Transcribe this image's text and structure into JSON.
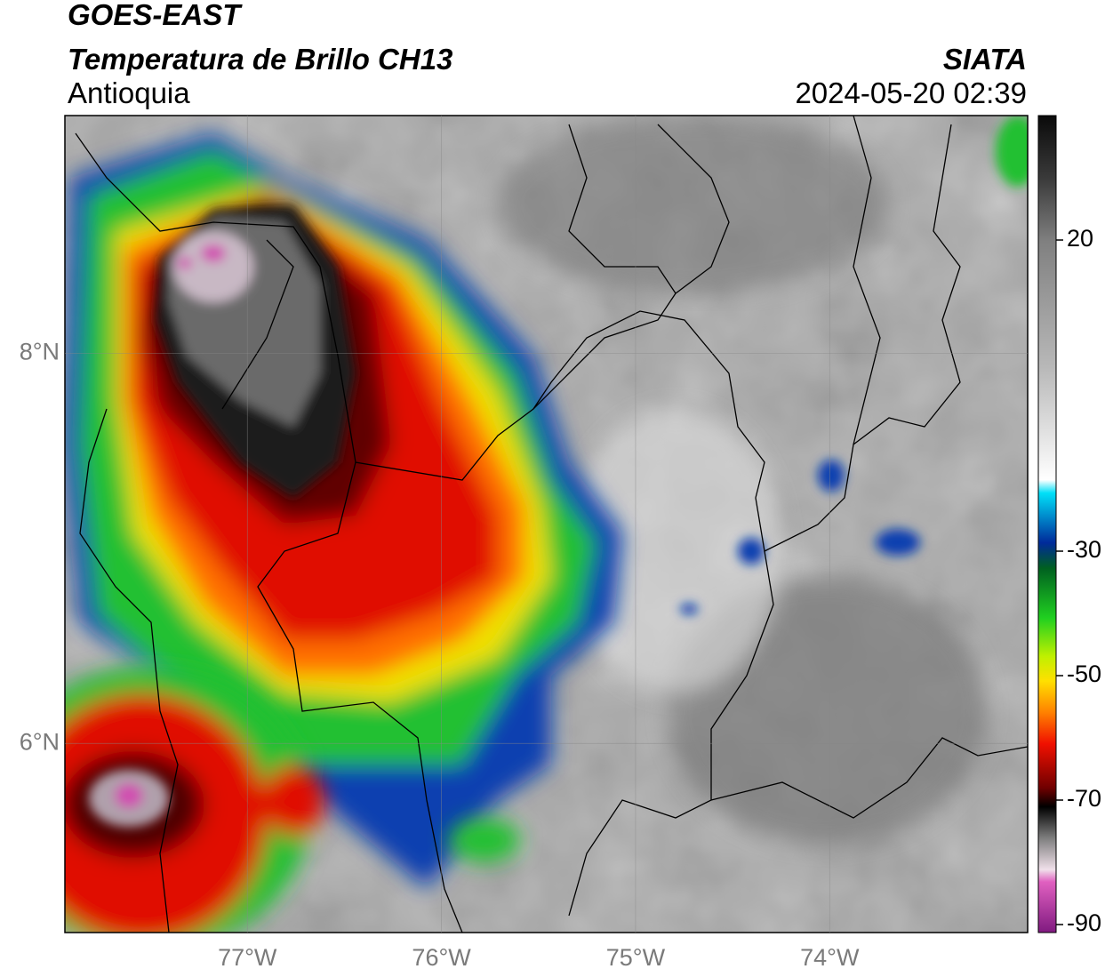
{
  "header": {
    "satellite": "GOES-EAST",
    "product": "Temperatura de Brillo CH13",
    "region": "Antioquia",
    "source": "SIATA",
    "datetime": "2024-05-20 02:39"
  },
  "map": {
    "lat_range": [
      5.03,
      9.22
    ],
    "lon_range": [
      -77.94,
      -72.98
    ],
    "lat_ticks": [
      {
        "value": 8,
        "label": "8°N"
      },
      {
        "value": 6,
        "label": "6°N"
      }
    ],
    "lon_ticks": [
      {
        "value": -77,
        "label": "77°W"
      },
      {
        "value": -76,
        "label": "76°W"
      },
      {
        "value": -75,
        "label": "75°W"
      },
      {
        "value": -74,
        "label": "74°W"
      }
    ]
  },
  "colorbar": {
    "range": [
      -90,
      40
    ],
    "ticks": [
      20,
      -30,
      -50,
      -70,
      -90
    ]
  }
}
